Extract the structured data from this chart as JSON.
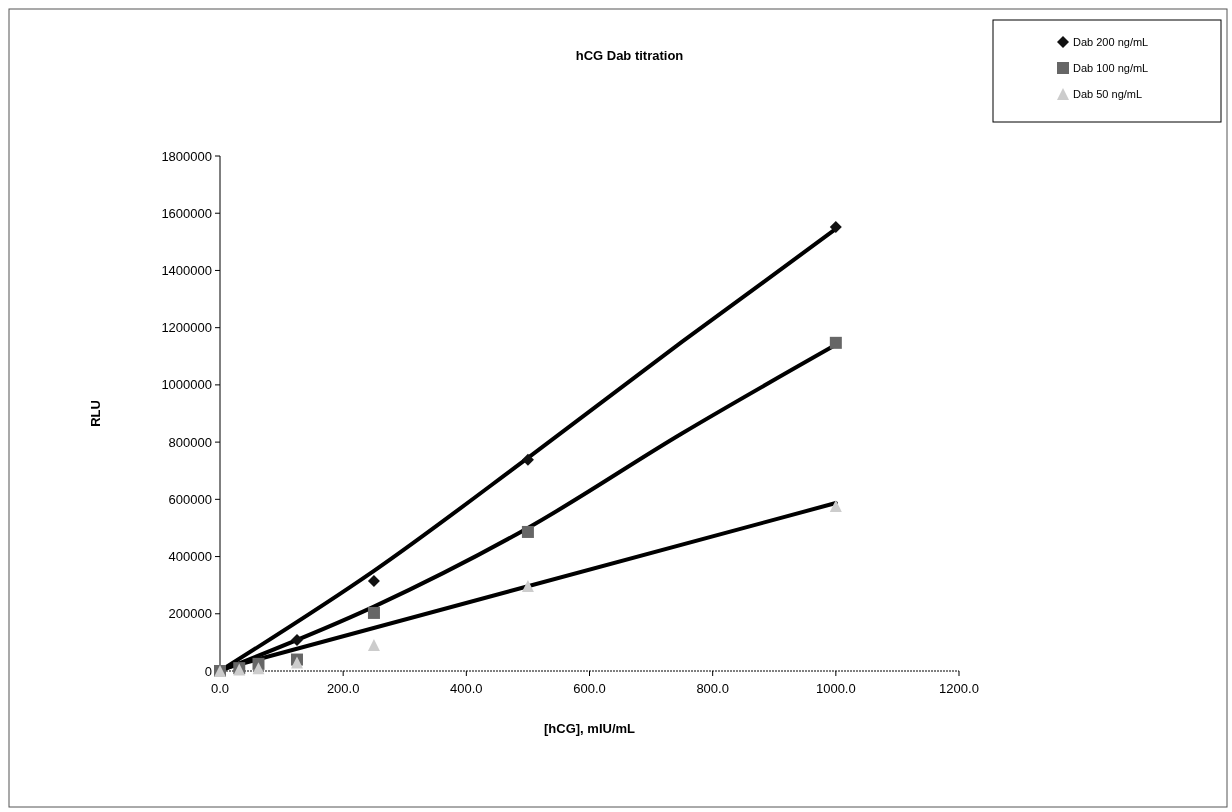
{
  "chart_data": {
    "type": "scatter",
    "title": "hCG Dab titration",
    "xlabel": "[hCG], mIU/mL",
    "ylabel": "RLU",
    "x": [
      0,
      31.25,
      62.5,
      125,
      250,
      500,
      1000
    ],
    "series": [
      {
        "name": "Dab 200 ng/mL",
        "color": "#111111",
        "marker": "diamond",
        "values": [
          null,
          null,
          null,
          108000,
          315000,
          738000,
          1552000
        ]
      },
      {
        "name": "Dab 100 ng/mL",
        "color": "#666666",
        "marker": "square",
        "values": [
          0,
          10000,
          25000,
          40000,
          203000,
          486000,
          1147000
        ]
      },
      {
        "name": "Dab 50 ng/mL",
        "color": "#cccccc",
        "marker": "triangle",
        "values": [
          0,
          5000,
          10000,
          30000,
          91000,
          297000,
          577000
        ]
      },
      {
        "type": "line",
        "color": "#000000",
        "marker": "none",
        "x": [
          0,
          250,
          500,
          750,
          1000
        ],
        "values": [
          0,
          350000,
          745000,
          1150000,
          1545000
        ]
      },
      {
        "type": "line",
        "color": "#000000",
        "marker": "none",
        "x": [
          0,
          250,
          500,
          750,
          1000
        ],
        "values": [
          0,
          225000,
          500000,
          830000,
          1140000
        ]
      },
      {
        "type": "line",
        "color": "#000000",
        "marker": "none",
        "x": [
          0,
          1000
        ],
        "values": [
          5000,
          587000
        ]
      }
    ],
    "xlim": [
      0,
      1200
    ],
    "xticks": [
      {
        "value": 0,
        "label": "0.0"
      },
      {
        "value": 200,
        "label": "200.0"
      },
      {
        "value": 400,
        "label": "400.0"
      },
      {
        "value": 600,
        "label": "600.0"
      },
      {
        "value": 800,
        "label": "800.0"
      },
      {
        "value": 1000,
        "label": "1000.0"
      },
      {
        "value": 1200,
        "label": "1200.0"
      }
    ],
    "ylim": [
      0,
      1800000
    ],
    "yticks": [
      0,
      200000,
      400000,
      600000,
      800000,
      1000000,
      1200000,
      1400000,
      1600000,
      1800000
    ],
    "grid": false,
    "legend": "top right"
  }
}
